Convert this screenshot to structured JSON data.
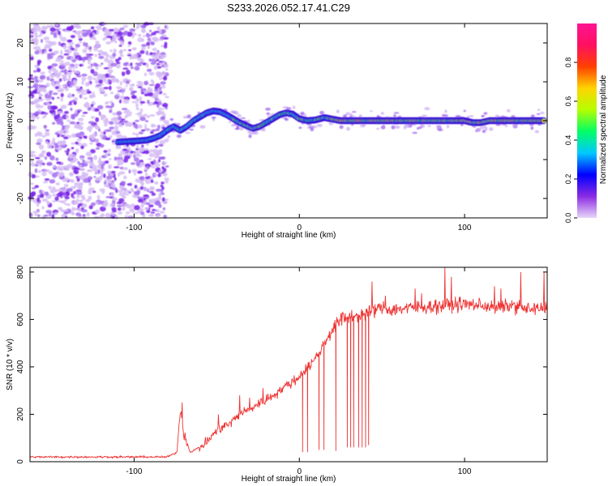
{
  "title": "S233.2026.052.17.41.C29",
  "chart_data": [
    {
      "type": "heatmap",
      "name": "spectrogram",
      "xlabel": "Height of straight line (km)",
      "ylabel": "Frequency (Hz)",
      "xlim": [
        -163,
        150
      ],
      "ylim": [
        -25,
        25
      ],
      "xticks": [
        -100,
        0,
        100
      ],
      "xtick_labels": [
        "-100",
        "0",
        "100"
      ],
      "yticks": [
        -20,
        -10,
        0,
        10,
        20
      ],
      "ytick_labels": [
        "-20",
        "-10",
        "0",
        "10",
        "20"
      ],
      "grid": false,
      "ridge": {
        "x": [
          -110,
          -98,
          -92,
          -88,
          -84,
          -80,
          -76,
          -72,
          -68,
          -64,
          -60,
          -56,
          -52,
          -48,
          -44,
          -40,
          -36,
          -32,
          -28,
          -24,
          -20,
          -16,
          -12,
          -8,
          -4,
          0,
          5,
          10,
          15,
          20,
          25,
          30,
          40,
          50,
          60,
          70,
          80,
          90,
          100,
          105,
          110,
          115,
          120,
          130,
          140,
          148
        ],
        "y": [
          -5.5,
          -5.2,
          -5.0,
          -4.5,
          -3.8,
          -2.5,
          -1.5,
          -2.5,
          -1.5,
          0,
          1.0,
          2.0,
          2.5,
          2.3,
          1.5,
          0.5,
          -0.5,
          -1.3,
          -2.0,
          -1.5,
          -0.5,
          0.5,
          1.5,
          2.0,
          1.7,
          0.5,
          0,
          0.2,
          0.8,
          0.4,
          0,
          0,
          0,
          0,
          0,
          0,
          0,
          0,
          0,
          -0.5,
          -0.5,
          0,
          0,
          0,
          0,
          0
        ]
      },
      "noise_region_x": [
        -163,
        -80
      ]
    },
    {
      "type": "colorbar",
      "name": "colorbar",
      "label": "Normalized spectral amplitude",
      "range": [
        0,
        1
      ],
      "ticks": [
        0.0,
        0.2,
        0.4,
        0.6,
        0.8
      ],
      "tick_labels": [
        "0.0",
        "0.2",
        "0.4",
        "0.6",
        "0.8"
      ],
      "colors": [
        "#e8d6f8",
        "#8a2be2",
        "#0000ff",
        "#00c8ff",
        "#00ff66",
        "#b4ff00",
        "#ffd400",
        "#ff4000",
        "#ff1060",
        "#ff1493"
      ]
    },
    {
      "type": "line",
      "name": "snr",
      "xlabel": "Height of straight line (km)",
      "ylabel": "SNR (10 * v/v)",
      "xlim": [
        -163,
        150
      ],
      "ylim": [
        0,
        820
      ],
      "xticks": [
        -100,
        0,
        100
      ],
      "xtick_labels": [
        "-100",
        "0",
        "100"
      ],
      "yticks": [
        0,
        200,
        400,
        600,
        800
      ],
      "ytick_labels": [
        "0",
        "200",
        "400",
        "600",
        "800"
      ],
      "grid": false,
      "color": "#ee3333",
      "trend": {
        "x": [
          -163,
          -80,
          -74,
          -72,
          -70,
          -66,
          -62,
          -58,
          -54,
          -50,
          -46,
          -42,
          -38,
          -34,
          -30,
          -26,
          -22,
          -18,
          -14,
          -10,
          -6,
          -2,
          0,
          4,
          8,
          12,
          16,
          20,
          25,
          30,
          35,
          40,
          45,
          50,
          55,
          60,
          70,
          80,
          90,
          100,
          110,
          120,
          130,
          140,
          150
        ],
        "y": [
          20,
          20,
          40,
          230,
          120,
          40,
          55,
          70,
          100,
          130,
          150,
          160,
          190,
          210,
          220,
          240,
          255,
          270,
          290,
          310,
          330,
          345,
          360,
          390,
          420,
          460,
          510,
          560,
          600,
          610,
          620,
          625,
          640,
          650,
          640,
          645,
          650,
          655,
          660,
          665,
          660,
          650,
          660,
          640,
          650
        ]
      },
      "noise_amplitude": 40,
      "dropouts": {
        "x": [
          2,
          5,
          12,
          15,
          22,
          29,
          31,
          33,
          36,
          38,
          40,
          42
        ],
        "y": [
          40,
          40,
          50,
          50,
          45,
          60,
          60,
          60,
          60,
          60,
          60,
          70
        ]
      },
      "spikes": {
        "x": [
          -71,
          -49,
          -36,
          -30,
          -22,
          38,
          44,
          52,
          70,
          74,
          88,
          92,
          118,
          122,
          134,
          148
        ],
        "y": [
          250,
          200,
          280,
          270,
          310,
          660,
          760,
          700,
          730,
          710,
          820,
          780,
          740,
          730,
          800,
          800
        ]
      }
    }
  ]
}
